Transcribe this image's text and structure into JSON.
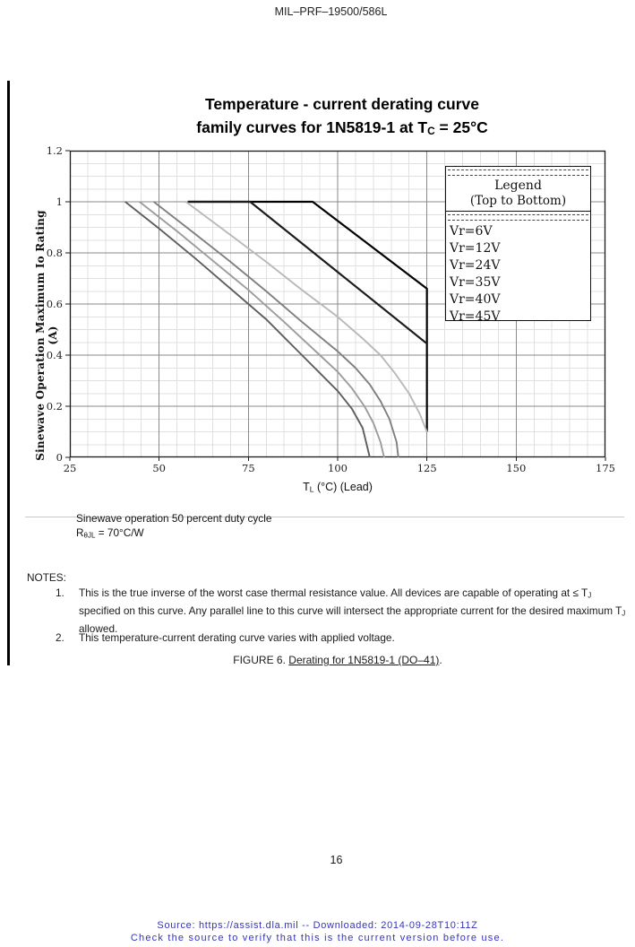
{
  "page": {
    "doc_number": "MIL–PRF–19500/586L",
    "page_number": "16",
    "footer_line1": "Source: https://assist.dla.mil -- Downloaded: 2014-09-28T10:11Z",
    "footer_line2": "Check the source to verify that this is the current version before use."
  },
  "chart": {
    "title_line1": "Temperature - current derating curve",
    "title_line2_rich": [
      {
        "t": "family curves for 1N5819-1 at T"
      },
      {
        "t": "C",
        "sub": true
      },
      {
        "t": " = 25°C"
      }
    ],
    "x_axis_label_rich": [
      {
        "t": "T"
      },
      {
        "t": "L",
        "sub": true
      },
      {
        "t": " (°C)  (Lead)"
      }
    ],
    "y_axis_title": "Sinewave Operation Maximum Io Rating (A)"
  },
  "chart_data": {
    "type": "line",
    "title": "Temperature - current derating curve family curves for 1N5819-1 at TC = 25C",
    "xlabel": "TL (C) (Lead)",
    "ylabel": "Sinewave Operation Maximum Io Rating (A)",
    "xlim": [
      25,
      175
    ],
    "ylim": [
      0,
      1.2
    ],
    "x_ticks": [
      25,
      50,
      75,
      100,
      125,
      150,
      175
    ],
    "y_ticks": [
      0,
      0.2,
      0.4,
      0.6,
      0.8,
      1,
      1.2
    ],
    "y_tick_labels": [
      "0",
      "0.2",
      "0.4",
      "0.6",
      "0.8",
      "1",
      "1.2"
    ],
    "x_minor_step": 5,
    "y_minor_step": 0.05,
    "grid": true,
    "legend_position": "upper right",
    "colors": {
      "major_grid": "#8a8a8a",
      "minor_grid": "#e0e0e0",
      "plot_border": "#1a1a1a",
      "tick_text": "#222222"
    },
    "series": [
      {
        "name": "Vr=6V",
        "color": "#000000",
        "width": 2.2,
        "points": [
          [
            58,
            1
          ],
          [
            93,
            1
          ],
          [
            125,
            0.66
          ],
          [
            125,
            0.1
          ]
        ]
      },
      {
        "name": "Vr=12V",
        "color": "#1c1c1c",
        "width": 2.2,
        "points": [
          [
            58,
            1
          ],
          [
            75.5,
            1
          ],
          [
            125,
            0.445
          ]
        ]
      },
      {
        "name": "Vr=24V",
        "color": "#b6bbb6",
        "width": 1.9,
        "points": [
          [
            57.5,
            1
          ],
          [
            70,
            0.87
          ],
          [
            80,
            0.765
          ],
          [
            90,
            0.655
          ],
          [
            100,
            0.55
          ],
          [
            107,
            0.465
          ],
          [
            112,
            0.4
          ],
          [
            116,
            0.33
          ],
          [
            120,
            0.25
          ],
          [
            123,
            0.17
          ],
          [
            125,
            0.1
          ]
        ]
      },
      {
        "name": "Vr=35V",
        "color": "#7f7f7f",
        "width": 1.9,
        "points": [
          [
            48.5,
            1
          ],
          [
            60,
            0.875
          ],
          [
            70,
            0.765
          ],
          [
            80,
            0.65
          ],
          [
            90,
            0.53
          ],
          [
            100,
            0.415
          ],
          [
            105,
            0.35
          ],
          [
            109,
            0.285
          ],
          [
            112,
            0.22
          ],
          [
            114.5,
            0.15
          ],
          [
            116.5,
            0.06
          ],
          [
            117,
            0
          ]
        ]
      },
      {
        "name": "Vr=40V",
        "color": "#9c9c9c",
        "width": 1.9,
        "points": [
          [
            44.5,
            1
          ],
          [
            55,
            0.885
          ],
          [
            65,
            0.77
          ],
          [
            75,
            0.655
          ],
          [
            85,
            0.53
          ],
          [
            95,
            0.4
          ],
          [
            100,
            0.335
          ],
          [
            104,
            0.27
          ],
          [
            107.5,
            0.2
          ],
          [
            110,
            0.135
          ],
          [
            112,
            0.06
          ],
          [
            113,
            0
          ]
        ]
      },
      {
        "name": "Vr=45V",
        "color": "#5e5e5e",
        "width": 1.9,
        "points": [
          [
            40.5,
            1
          ],
          [
            50,
            0.895
          ],
          [
            60,
            0.78
          ],
          [
            70,
            0.66
          ],
          [
            80,
            0.54
          ],
          [
            90,
            0.4
          ],
          [
            95,
            0.33
          ],
          [
            100,
            0.26
          ],
          [
            104,
            0.19
          ],
          [
            107,
            0.115
          ],
          [
            109,
            0
          ]
        ]
      }
    ]
  },
  "legend": {
    "title": "Legend",
    "subtitle": "(Top to Bottom)",
    "entries": [
      "Vr=6V",
      "Vr=12V",
      "Vr=24V",
      "Vr=35V",
      "Vr=40V",
      "Vr=45V"
    ]
  },
  "below_chart": {
    "line1": "Sinewave operation 50 percent duty cycle",
    "line2_rich": [
      {
        "t": "R"
      },
      {
        "t": "θJL",
        "sub": true
      },
      {
        "t": " = 70°C/W"
      }
    ]
  },
  "notes": {
    "heading": "NOTES:",
    "items": [
      {
        "num": "1.",
        "body_rich": [
          {
            "t": "This is the true inverse of the worst case thermal resistance value.  All devices are capable of operating at ≤ T"
          },
          {
            "t": "J",
            "sub": true
          },
          {
            "t": " specified on this curve.  Any parallel line to this curve will intersect the appropriate current for the desired maximum T"
          },
          {
            "t": "J",
            "sub": true
          },
          {
            "t": " allowed."
          }
        ]
      },
      {
        "num": "2.",
        "body_rich": [
          {
            "t": "This temperature-current derating curve varies with applied voltage."
          }
        ]
      }
    ]
  },
  "figure_caption_rich": [
    {
      "t": "FIGURE 6.  "
    },
    {
      "t": "Derating for 1N5819-1 (DO–41)",
      "u": true
    },
    {
      "t": "."
    }
  ]
}
